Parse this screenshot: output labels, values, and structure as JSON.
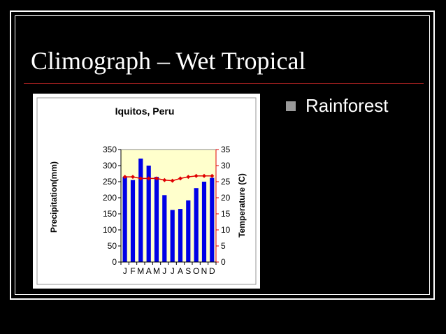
{
  "slide": {
    "title": "Climograph – Wet Tropical",
    "bullets": [
      "Rainforest"
    ],
    "colors": {
      "background": "#000000",
      "rule": "#8a1b1b"
    }
  },
  "chart_data": {
    "type": "bar",
    "title": "Iquitos, Peru",
    "categories": [
      "J",
      "F",
      "M",
      "A",
      "M",
      "J",
      "J",
      "A",
      "S",
      "O",
      "N",
      "D"
    ],
    "series": [
      {
        "values": [
          265,
          255,
          322,
          300,
          265,
          208,
          162,
          165,
          192,
          230,
          250,
          262
        ],
        "axis": "left",
        "color": "#0000e6",
        "type": "bar"
      },
      {
        "values": [
          26.5,
          26.5,
          26,
          26,
          26,
          25.5,
          25.3,
          26,
          26.5,
          26.8,
          26.8,
          26.8
        ],
        "axis": "right",
        "color": "#e00000",
        "type": "line"
      }
    ],
    "ylabel": "Precipitation(mm)",
    "y2label": "Temperature (C)",
    "ylim": [
      0,
      350
    ],
    "y2lim": [
      0,
      35
    ],
    "yticks": [
      0,
      50,
      100,
      150,
      200,
      250,
      300,
      350
    ],
    "y2ticks": [
      0,
      5,
      10,
      15,
      20,
      25,
      30,
      35
    ],
    "plot_background": "#ffffcc",
    "grid": false,
    "legend": "none"
  }
}
